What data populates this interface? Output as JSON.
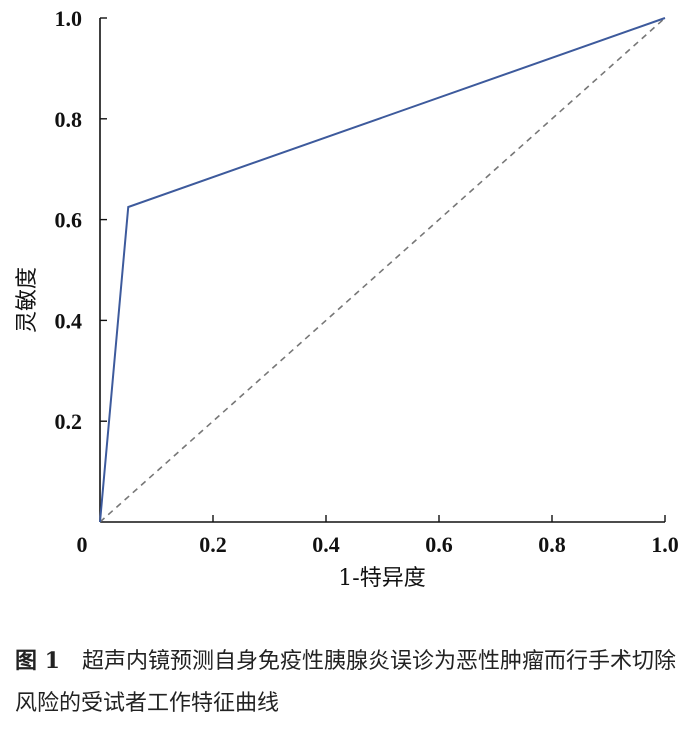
{
  "chart_data": {
    "type": "line",
    "xlabel": "1-特异度",
    "ylabel": "灵敏度",
    "xlim": [
      0,
      1
    ],
    "ylim": [
      0,
      1
    ],
    "x_ticks": [
      "0",
      "0.2",
      "0.4",
      "0.6",
      "0.8",
      "1.0"
    ],
    "y_ticks": [
      "0.2",
      "0.4",
      "0.6",
      "0.8",
      "1.0"
    ],
    "grid": false,
    "series": [
      {
        "x": [
          0,
          0.05,
          1.0
        ],
        "y": [
          0,
          0.625,
          1.0
        ],
        "color": "#3d5a9c",
        "style": "solid"
      },
      {
        "x": [
          0,
          1.0
        ],
        "y": [
          0,
          1.0
        ],
        "color": "#777777",
        "style": "dashed"
      }
    ]
  },
  "caption": {
    "figure_no": "图 1",
    "text": "超声内镜预测自身免疫性胰腺炎误诊为恶性肿瘤而行手术切除风险的受试者工作特征曲线"
  }
}
